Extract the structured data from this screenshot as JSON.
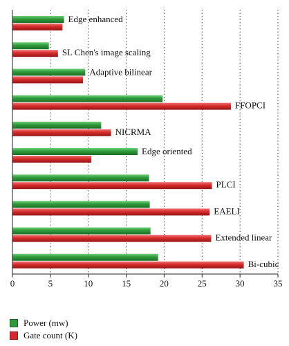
{
  "chart_data": {
    "type": "bar",
    "orientation": "horizontal",
    "categories": [
      "Edge enhanced",
      "SL Chen's image scaling",
      "Adaptive bilinear",
      "FFOPCI",
      "NICRMA",
      "Edge oriented",
      "PLCI",
      "EAELI",
      "Extended linear",
      "Bi-cubic"
    ],
    "series": [
      {
        "name": "Power (mw)",
        "color": "#2e9a3a",
        "values": [
          6.8,
          4.8,
          9.6,
          19.8,
          11.7,
          16.5,
          18.0,
          18.1,
          18.2,
          19.2
        ]
      },
      {
        "name": "Gate count (K)",
        "color": "#d42a2a",
        "values": [
          6.6,
          6.0,
          9.3,
          28.8,
          13.0,
          10.4,
          26.3,
          26.0,
          26.2,
          30.5
        ]
      }
    ],
    "xlim": [
      0,
      35
    ],
    "xticks": [
      0,
      5,
      10,
      15,
      20,
      25,
      30,
      35
    ],
    "grid": "vertical dotted",
    "legend_position": "bottom-left",
    "title": "",
    "xlabel": "",
    "ylabel": ""
  }
}
